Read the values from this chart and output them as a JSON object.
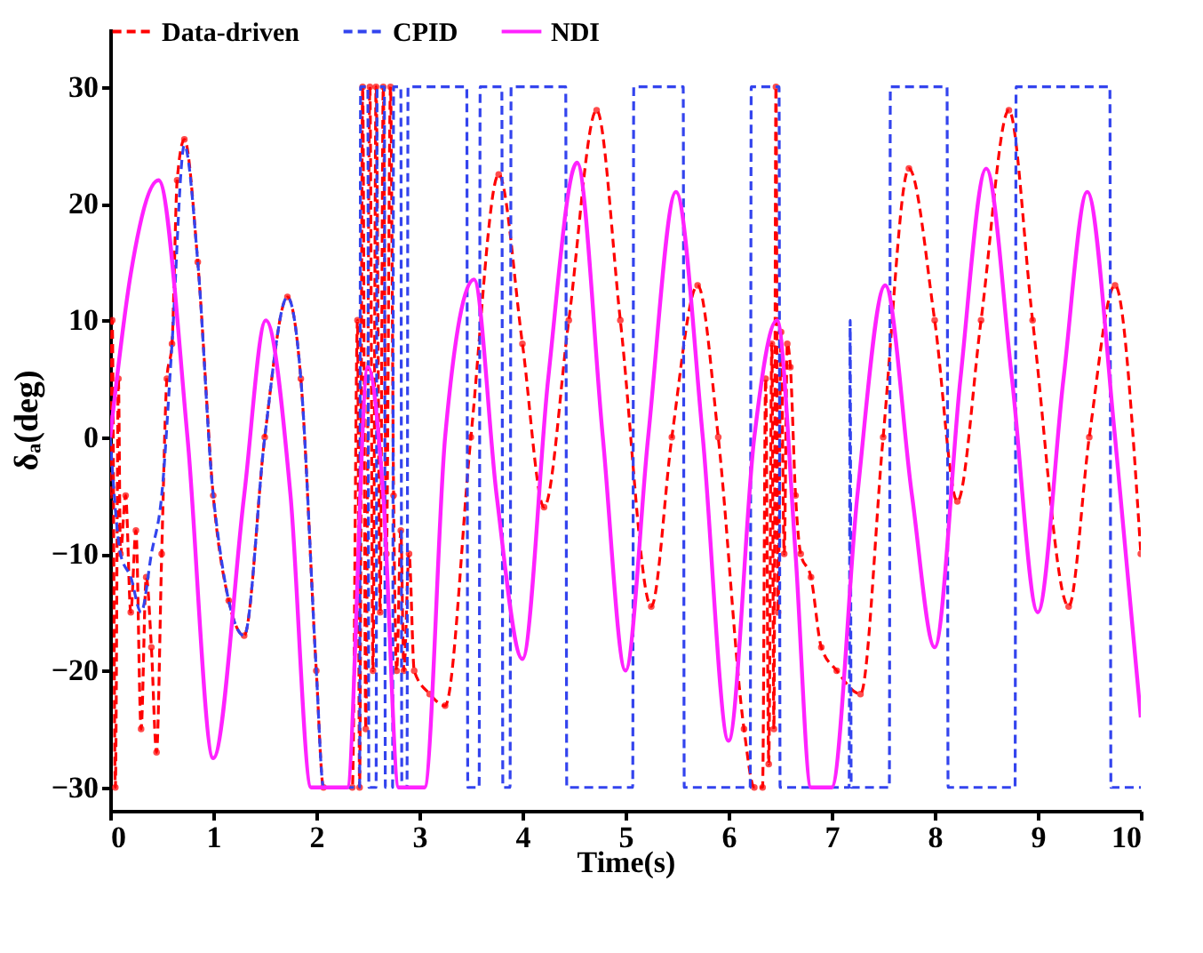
{
  "chart_data": {
    "type": "line",
    "xlabel": "Time(s)",
    "ylabel": "δₐ(deg)",
    "xlim": [
      0,
      10
    ],
    "xticks": [
      0,
      1,
      2,
      3,
      4,
      5,
      6,
      7,
      8,
      9,
      10
    ],
    "ylim": [
      -32,
      35
    ],
    "yticks": [
      -30,
      -20,
      -10,
      0,
      10,
      20,
      30
    ],
    "grid": false,
    "legend": "top",
    "series": [
      {
        "name": "Data-driven",
        "color": "#ff0000",
        "line_style": "dashed",
        "marker": "circle",
        "x": [
          0,
          0.02,
          0.05,
          0.08,
          0.1,
          0.15,
          0.2,
          0.25,
          0.3,
          0.35,
          0.4,
          0.45,
          0.5,
          0.55,
          0.6,
          0.65,
          0.72,
          0.85,
          1.0,
          1.15,
          1.3,
          1.5,
          1.72,
          1.85,
          2.0,
          2.07,
          2.35,
          2.4,
          2.42,
          2.45,
          2.48,
          2.52,
          2.55,
          2.58,
          2.62,
          2.65,
          2.68,
          2.72,
          2.75,
          2.78,
          2.82,
          2.85,
          2.9,
          2.95,
          3.1,
          3.25,
          3.5,
          3.77,
          4.0,
          4.21,
          4.45,
          4.72,
          4.95,
          5.25,
          5.45,
          5.7,
          5.9,
          6.15,
          6.25,
          6.33,
          6.36,
          6.39,
          6.42,
          6.44,
          6.46,
          6.48,
          6.51,
          6.54,
          6.57,
          6.6,
          6.65,
          6.7,
          6.8,
          6.9,
          7.05,
          7.28,
          7.5,
          7.75,
          8.0,
          8.22,
          8.45,
          8.72,
          8.95,
          9.3,
          9.5,
          9.75,
          10
        ],
        "values": [
          -5,
          10,
          -30,
          5,
          -10,
          -5,
          -15,
          -8,
          -25,
          -12,
          -18,
          -27,
          -10,
          5,
          8,
          22,
          25.5,
          15,
          -5,
          -14,
          -17,
          0,
          12,
          5,
          -20,
          -30,
          -30,
          10,
          -30,
          30,
          -25,
          30,
          -20,
          30,
          -15,
          30,
          -10,
          30,
          -5,
          -20,
          -8,
          -20,
          -10,
          -20,
          -22,
          -23,
          0,
          22.5,
          8,
          -6,
          10,
          28,
          10,
          -14.5,
          0,
          13,
          0,
          -25,
          -30,
          -30,
          5,
          -28,
          8,
          -25,
          30,
          -15,
          9,
          -10,
          8,
          6,
          -5,
          -10,
          -12,
          -18,
          -20,
          -22,
          0,
          23,
          10,
          -5.5,
          10,
          28,
          10,
          -14.5,
          0,
          13,
          -10
        ]
      },
      {
        "name": "CPID",
        "color": "#3344ee",
        "line_style": "dashed",
        "marker": "none",
        "x": [
          0,
          0.1,
          0.2,
          0.3,
          0.4,
          0.5,
          0.6,
          0.72,
          0.85,
          1.0,
          1.3,
          1.5,
          1.72,
          1.85,
          2.0,
          2.07,
          2.42,
          2.43,
          2.5,
          2.51,
          2.58,
          2.59,
          2.66,
          2.67,
          2.74,
          2.75,
          2.82,
          2.83,
          2.88,
          2.89,
          3.46,
          3.47,
          3.48,
          3.58,
          3.59,
          3.8,
          3.81,
          3.88,
          3.89,
          4.42,
          4.43,
          5.07,
          5.08,
          5.56,
          5.57,
          6.21,
          6.22,
          6.49,
          6.5,
          7.17,
          7.18,
          7.19,
          7.56,
          7.57,
          8.12,
          8.13,
          8.78,
          8.79,
          9.7,
          9.71,
          10
        ],
        "values": [
          0,
          -10,
          -12,
          -15,
          -10,
          -5,
          8,
          25,
          15,
          -5,
          -17,
          0,
          12,
          5,
          -20,
          -30,
          -30,
          30,
          30,
          -30,
          -30,
          30,
          30,
          -30,
          -30,
          30,
          30,
          -30,
          -30,
          30,
          30,
          -30,
          -30,
          -30,
          30,
          30,
          -30,
          -30,
          30,
          30,
          -30,
          -30,
          30,
          30,
          -30,
          -30,
          30,
          30,
          -30,
          -30,
          10,
          -30,
          -30,
          30,
          30,
          -30,
          -30,
          30,
          30,
          -30,
          -30
        ]
      },
      {
        "name": "NDI",
        "color": "#ff22ff",
        "line_style": "solid",
        "marker": "none",
        "x": [
          0,
          0.2,
          0.47,
          0.75,
          1.0,
          1.3,
          1.51,
          1.75,
          1.95,
          2.3,
          2.5,
          2.65,
          2.8,
          3.05,
          3.25,
          3.53,
          3.75,
          4.0,
          4.25,
          4.53,
          4.78,
          5.0,
          5.22,
          5.49,
          5.75,
          6.0,
          6.25,
          6.47,
          6.65,
          6.8,
          7.0,
          7.25,
          7.52,
          7.78,
          8.0,
          8.25,
          8.5,
          8.75,
          9.0,
          9.25,
          9.48,
          9.75,
          10
        ],
        "values": [
          0,
          14,
          22,
          0,
          -27.5,
          -5,
          10,
          -5,
          -30,
          -30,
          6,
          -5,
          -30,
          -30,
          0,
          13.5,
          -5,
          -19,
          5,
          23.5,
          0,
          -20,
          0,
          21,
          0,
          -26,
          0,
          10,
          -10,
          -30,
          -30,
          -5,
          13,
          -5,
          -18,
          5,
          23,
          5,
          -15,
          5,
          21,
          0,
          -24
        ]
      }
    ]
  }
}
